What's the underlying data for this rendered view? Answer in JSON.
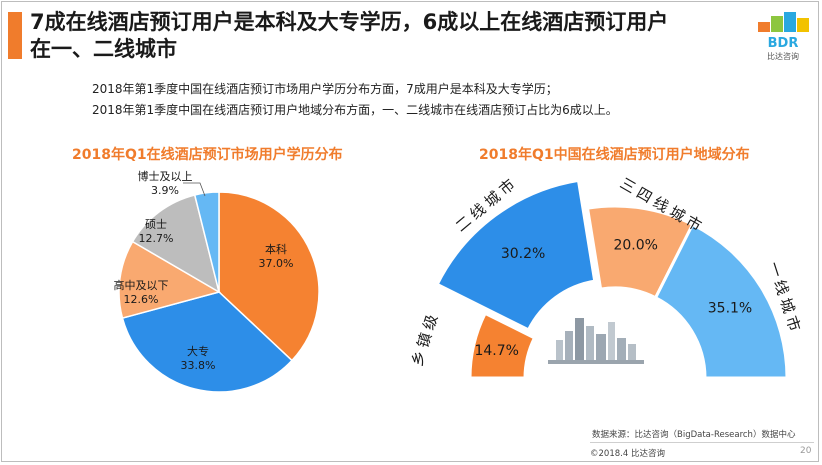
{
  "header": {
    "title_line1": "7成在线酒店预订用户是本科及大专学历，6成以上在线酒店预订用户",
    "title_line2": "在一、二线城市",
    "logo_text": "BDR",
    "logo_subtext": "比达咨询"
  },
  "description": {
    "line1": "2018年第1季度中国在线酒店预订市场用户学历分布方面，7成用户是本科及大专学历；",
    "line2": "2018年第1季度中国在线酒店预订用户地域分布方面，一、二线城市在线酒店预订占比为6成以上。"
  },
  "footer": {
    "source": "数据来源：比达咨询（BigData-Research）数据中心",
    "copyright": "©2018.4 比达咨询",
    "page": "20"
  },
  "colors": {
    "accent": "#f07c2c",
    "orange": "#f58231",
    "blue": "#2d8ee8",
    "peach": "#f9a970",
    "gray": "#bdbdbd",
    "lightblue": "#65b8f4"
  },
  "chart_data": [
    {
      "type": "pie",
      "title": "2018年Q1在线酒店预订市场用户学历分布",
      "slices": [
        {
          "name": "本科",
          "value": 37.0,
          "label": "37.0%",
          "color": "#f58231"
        },
        {
          "name": "大专",
          "value": 33.8,
          "label": "33.8%",
          "color": "#2d8ee8"
        },
        {
          "name": "高中及以下",
          "value": 12.6,
          "label": "12.6%",
          "color": "#f9a970"
        },
        {
          "name": "硕士",
          "value": 12.7,
          "label": "12.7%",
          "color": "#bdbdbd"
        },
        {
          "name": "博士及以上",
          "value": 3.9,
          "label": "3.9%",
          "color": "#65b8f4"
        }
      ]
    },
    {
      "type": "pie",
      "title": "2018年Q1中国在线酒店预订用户地域分布",
      "slices": [
        {
          "name": "乡镇级",
          "value": 14.7,
          "label": "14.7%",
          "color": "#f58231"
        },
        {
          "name": "二线城市",
          "value": 30.2,
          "label": "30.2%",
          "color": "#2d8ee8"
        },
        {
          "name": "三四线城市",
          "value": 20.0,
          "label": "20.0%",
          "color": "#f9a970"
        },
        {
          "name": "一线城市",
          "value": 35.1,
          "label": "35.1%",
          "color": "#65b8f4"
        }
      ]
    }
  ]
}
